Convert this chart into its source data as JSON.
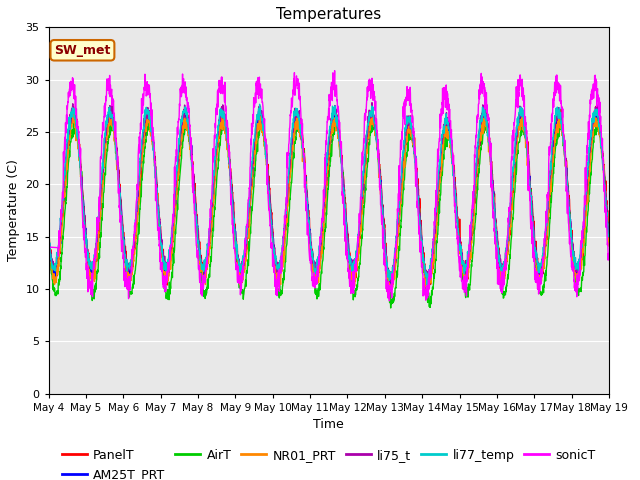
{
  "title": "Temperatures",
  "xlabel": "Time",
  "ylabel": "Temperature (C)",
  "ylim": [
    0,
    35
  ],
  "yticks": [
    0,
    5,
    10,
    15,
    20,
    25,
    30,
    35
  ],
  "annotation_text": "SW_met",
  "annotation_bg": "#ffffcc",
  "annotation_border": "#cc6600",
  "annotation_text_color": "#8b0000",
  "series_names": [
    "PanelT",
    "AM25T_PRT",
    "AirT",
    "NR01_PRT",
    "li75_t",
    "li77_temp",
    "sonicT"
  ],
  "series_colors": [
    "#ff0000",
    "#0000ff",
    "#00cc00",
    "#ff8800",
    "#aa00aa",
    "#00cccc",
    "#ff00ff"
  ],
  "xticklabels": [
    "May 4",
    "May 5",
    "May 6",
    "May 7",
    "May 8",
    "May 9",
    "May 10",
    "May 11",
    "May 12",
    "May 13",
    "May 14",
    "May 15",
    "May 16",
    "May 17",
    "May 18",
    "May 19"
  ],
  "n_days": 15,
  "pts_per_day": 144,
  "background_color": "#e8e8e8",
  "grid_color": "#ffffff",
  "title_fontsize": 11,
  "legend_fontsize": 9,
  "figsize": [
    6.4,
    4.8
  ],
  "dpi": 100
}
